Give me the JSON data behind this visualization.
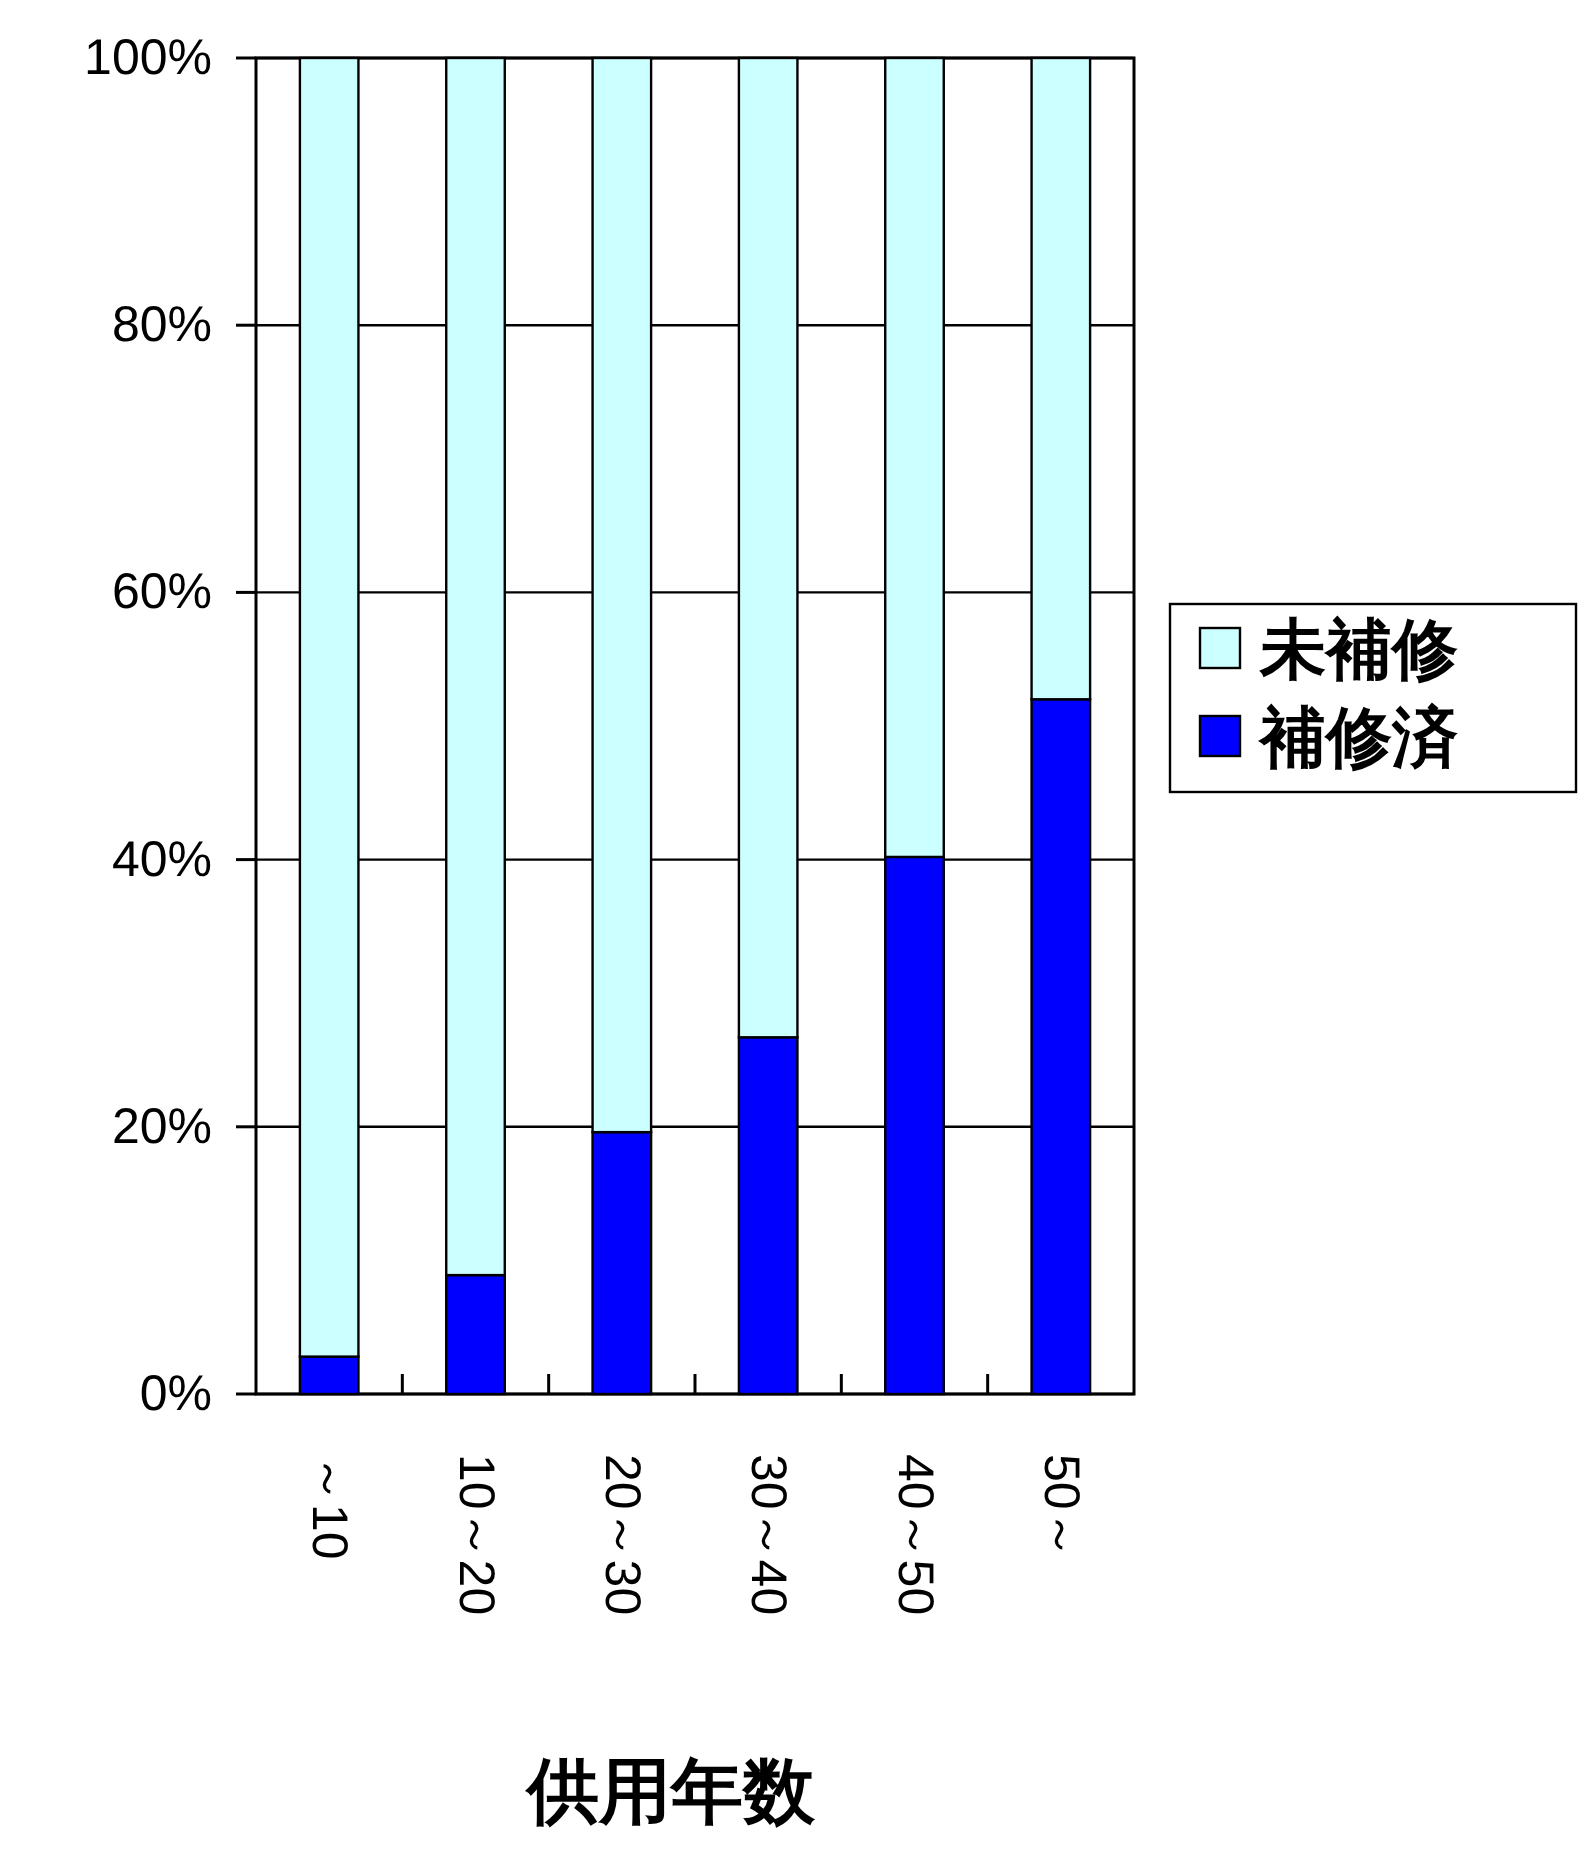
{
  "chart_data": {
    "type": "bar",
    "stacked": true,
    "xlabel": "供用年数",
    "categories": [
      "～10",
      "10～20",
      "20～30",
      "30～40",
      "40～50",
      "50～"
    ],
    "series": [
      {
        "name": "補修済",
        "color": "#0000ff",
        "values": [
          2.8,
          8.9,
          19.6,
          26.7,
          40.2,
          52
        ]
      },
      {
        "name": "未補修",
        "color": "#ccffff",
        "values": [
          97.2,
          91.1,
          80.4,
          73.3,
          59.8,
          48
        ]
      }
    ],
    "ylim": [
      0,
      100
    ],
    "yticks": [
      {
        "value": 0,
        "label": "0%"
      },
      {
        "value": 20,
        "label": "20%"
      },
      {
        "value": 40,
        "label": "40%"
      },
      {
        "value": 60,
        "label": "60%"
      },
      {
        "value": 80,
        "label": "80%"
      },
      {
        "value": 100,
        "label": "100%"
      }
    ],
    "grid": "y",
    "legend": "right"
  }
}
